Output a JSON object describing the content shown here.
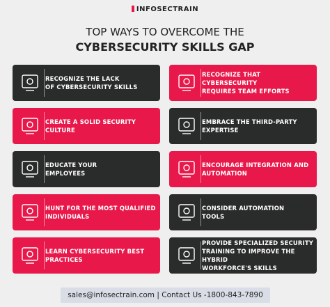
{
  "header": {
    "logo": "INFOSECTRAIN",
    "title_line1": "TOP WAYS TO OVERCOME THE",
    "title_line2": "CYBERSECURITY SKILLS GAP"
  },
  "left_items": [
    {
      "lines": [
        "RECOGNIZE THE LACK",
        "OF CYBERSECURITY SKILLS"
      ]
    },
    {
      "lines": [
        "CREATE A SOLID SECURITY",
        "CULTURE"
      ]
    },
    {
      "lines": [
        "EDUCATE YOUR",
        "EMPLOYEES"
      ]
    },
    {
      "lines": [
        "HUNT FOR THE MOST QUALIFIED",
        "INDIVIDUALS"
      ]
    },
    {
      "lines": [
        "LEARN CYBERSECURITY BEST",
        "PRACTICES"
      ]
    }
  ],
  "right_items": [
    {
      "lines": [
        "RECOGNIZE THAT CYBERSECURITY",
        "REQUIRES TEAM EFFORTS"
      ]
    },
    {
      "lines": [
        "EMBRACE THE THIRD-PARTY",
        "EXPERTISE"
      ]
    },
    {
      "lines": [
        "ENCOURAGE INTEGRATION AND",
        "AUTOMATION"
      ]
    },
    {
      "lines": [
        "CONSIDER AUTOMATION",
        "TOOLS"
      ]
    },
    {
      "lines": [
        "PROVIDE SPECIALIZED SECURITY",
        "TRAINING TO IMPROVE THE HYBRID",
        "WORKFORCE'S SKILLS"
      ]
    }
  ],
  "footer": {
    "contact": "sales@infosectrain.com | Contact Us -1800-843-7890"
  }
}
